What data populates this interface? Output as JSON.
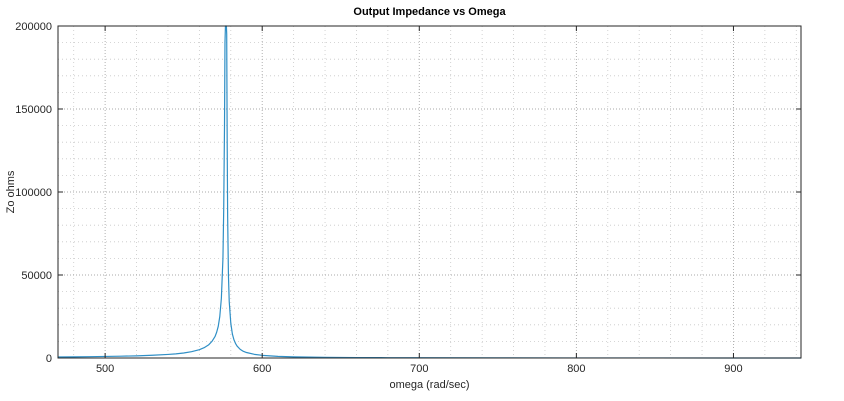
{
  "chart_data": {
    "type": "line",
    "title": "Output Impedance vs Omega",
    "xlabel": "omega (rad/sec)",
    "ylabel": "Zo ohms",
    "xlim": [
      470,
      943
    ],
    "ylim": [
      0,
      200000
    ],
    "xticks": [
      500,
      600,
      700,
      800,
      900
    ],
    "yticks": [
      0,
      50000,
      100000,
      150000,
      200000
    ],
    "grid": true,
    "minor_grid": true,
    "series": [
      {
        "color": "#2f8fc6",
        "x": [
          470,
          480,
          490,
          500,
          510,
          520,
          530,
          540,
          545,
          550,
          555,
          560,
          563,
          566,
          568,
          570,
          571,
          572,
          573,
          574,
          575,
          575.5,
          576,
          576.3,
          576.6,
          576.8,
          577.0,
          577.2,
          577.4,
          577.7,
          578,
          578.5,
          579,
          580,
          581,
          582,
          583,
          584,
          586,
          588,
          590,
          595,
          600,
          610,
          620,
          640,
          660,
          680,
          700,
          750,
          800,
          850,
          900,
          943
        ],
        "y": [
          600,
          700,
          800,
          950,
          1100,
          1300,
          1650,
          2150,
          2500,
          3000,
          3800,
          5000,
          6200,
          8000,
          10000,
          13000,
          15500,
          19000,
          25000,
          36000,
          60000,
          90000,
          140000,
          190000,
          200000,
          200000,
          200000,
          200000,
          195000,
          130000,
          85000,
          50000,
          34000,
          21000,
          14500,
          11000,
          8800,
          7200,
          5200,
          4000,
          3300,
          2200,
          1600,
          1000,
          700,
          420,
          280,
          200,
          150,
          80,
          45,
          25,
          10,
          0
        ]
      }
    ]
  }
}
